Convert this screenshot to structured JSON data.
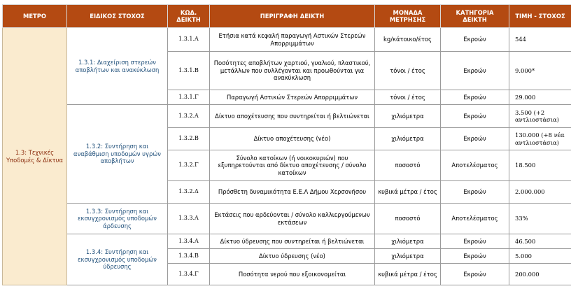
{
  "headers": {
    "metro": "ΜΕΤΡΟ",
    "target": "ΕΙΔΙΚΟΣ ΣΤΟΧΟΣ",
    "code": "ΚΩΔ. ΔΕΙΚΤΗ",
    "description": "ΠΕΡΙΓΡΑΦΗ ΔΕΙΚΤΗ",
    "unit": "ΜΟΝΑΔΑ ΜΕΤΡΗΣΗΣ",
    "category": "ΚΑΤΗΓΟΡΙΑ ΔΕΙΚΤΗ",
    "value": "ΤΙΜΗ - ΣΤΟΧΟΣ"
  },
  "metro": "1.3: Τεχνικές Υποδομές & Δίκτυα",
  "targets": [
    "1.3.1: Διαχείριση στερεών αποβλήτων και ανακύκλωση",
    "1.3.2: Συντήρηση και αναβάθμιση υποδομών υγρών αποβλήτων",
    "1.3.3: Συντήρηση και εκσυγχρονισμός υποδομών άρδευσης",
    "1.3.4: Συντήρηση και εκσυγχρονισμός υποδομών ύδρευσης"
  ],
  "rows": [
    {
      "code": "1.3.1.Α",
      "description": "Ετήσια κατά κεφαλή παραγωγή Αστικών Στερεών Απορριμμάτων",
      "unit": "kg/κάτοικο/έτος",
      "category": "Εκροών",
      "value": "544"
    },
    {
      "code": "1.3.1.Β",
      "description": "Ποσότητες αποβλήτων χαρτιού, γυαλιού, πλαστικού, μετάλλων που συλλέγονται και προωθούνται για ανακύκλωση",
      "unit": "τόνοι / έτος",
      "category": "Εκροών",
      "value": "9.000*"
    },
    {
      "code": "1.3.1.Γ",
      "description": "Παραγωγή Αστικών Στερεών Απορριμμάτων",
      "unit": "τόνοι / έτος",
      "category": "Εκροών",
      "value": "29.000"
    },
    {
      "code": "1.3.2.Α",
      "description": "Δίκτυο αποχέτευσης που συντηρείται ή βελτιώνεται",
      "unit": "χιλιόμετρα",
      "category": "Εκροών",
      "value": "3.500 (+2 αντλιοστάσια)"
    },
    {
      "code": "1.3.2.Β",
      "description": "Δίκτυο αποχέτευσης (νέο)",
      "unit": "χιλιόμετρα",
      "category": "Εκροών",
      "value": "130.000 (+8 νέα αντλιοστάσια)"
    },
    {
      "code": "1.3.2.Γ",
      "description": "Σύνολο κατοίκων (ή νοικοκυριών) που εξυπηρετούνται από δίκτυο αποχέτευσης / σύνολο κατοίκων",
      "unit": "ποσοστό",
      "category": "Αποτελέσματος",
      "value": "18.500"
    },
    {
      "code": "1.3.2.Δ",
      "description": "Πρόσθετη δυναμικότητα Ε.Ε.Λ Δήμου Χερσονήσου",
      "unit": "κυβικά μέτρα / έτος",
      "category": "Εκροών",
      "value": "2.000.000"
    },
    {
      "code": "1.3.3.Α",
      "description": "Εκτάσεις που αρδεύονται / σύνολο καλλιεργούμενων εκτάσεων",
      "unit": "ποσοστό",
      "category": "Αποτελέσματος",
      "value": "33%"
    },
    {
      "code": "1.3.4.Α",
      "description": "Δίκτυο ύδρευσης που συντηρείται ή βελτιώνεται",
      "unit": "χιλιόμετρα",
      "category": "Εκροών",
      "value": "46.500"
    },
    {
      "code": "1.3.4.Β",
      "description": "Δίκτυο ύδρευσης (νέο)",
      "unit": "χιλιόμετρα",
      "category": "Εκροών",
      "value": "5.000"
    },
    {
      "code": "1.3.4.Γ",
      "description": "Ποσότητα νερού που εξοικονομείται",
      "unit": "κυβικά μέτρα / έτος",
      "category": "Εκροών",
      "value": "200.000"
    }
  ]
}
